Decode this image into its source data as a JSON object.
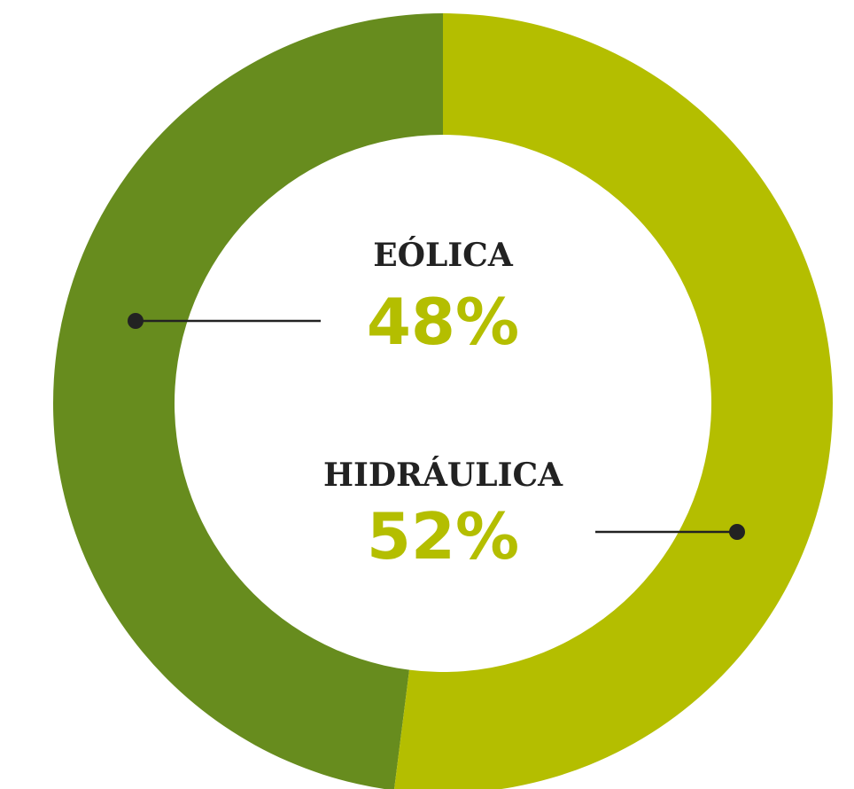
{
  "chart_data": {
    "type": "donut",
    "categories": [
      "EÓLICA",
      "HIDRÁULICA"
    ],
    "values": [
      48,
      52
    ],
    "value_labels": [
      "48%",
      "52%"
    ],
    "colors": [
      "#678c1e",
      "#b4be00"
    ],
    "label_color": "#b4be00"
  }
}
